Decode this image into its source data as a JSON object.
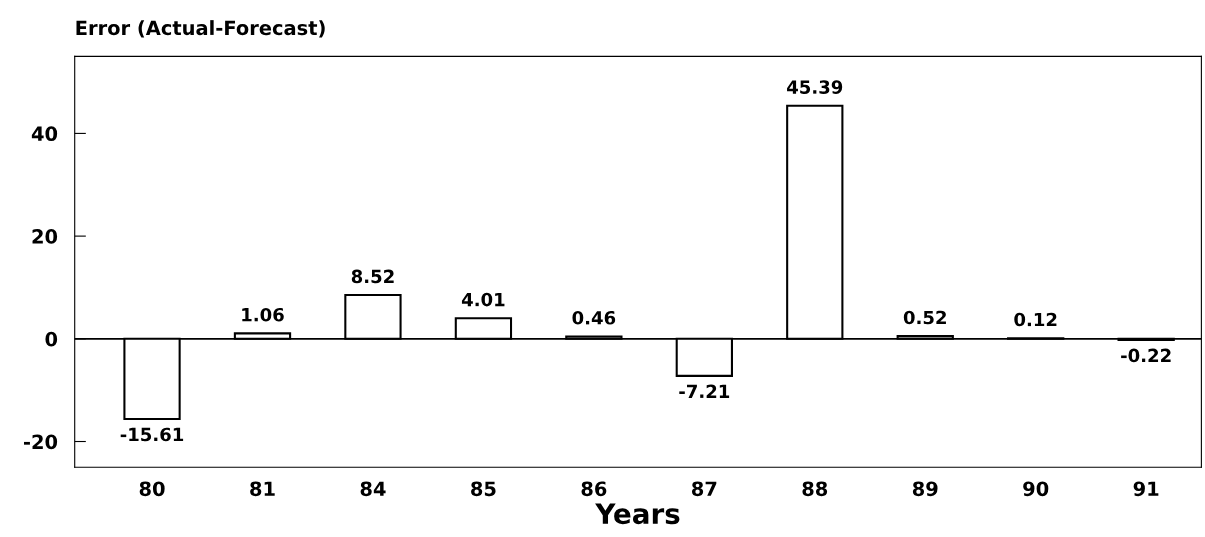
{
  "chart_data": {
    "type": "bar",
    "title": "Error (Actual-Forecast)",
    "xlabel": "Years",
    "categories": [
      "80",
      "81",
      "84",
      "85",
      "86",
      "87",
      "88",
      "89",
      "90",
      "91"
    ],
    "values": [
      -15.61,
      1.06,
      8.52,
      4.01,
      0.46,
      -7.21,
      45.39,
      0.52,
      0.12,
      -0.22
    ],
    "color": "#ffffff",
    "data_labels": true,
    "ylim": [
      -25,
      55
    ],
    "yticks": [
      -20,
      0,
      20,
      40
    ],
    "ref_lines": [
      {
        "axis": "y",
        "value": 0,
        "color": "#000000"
      }
    ],
    "grid": false,
    "legend": false
  }
}
